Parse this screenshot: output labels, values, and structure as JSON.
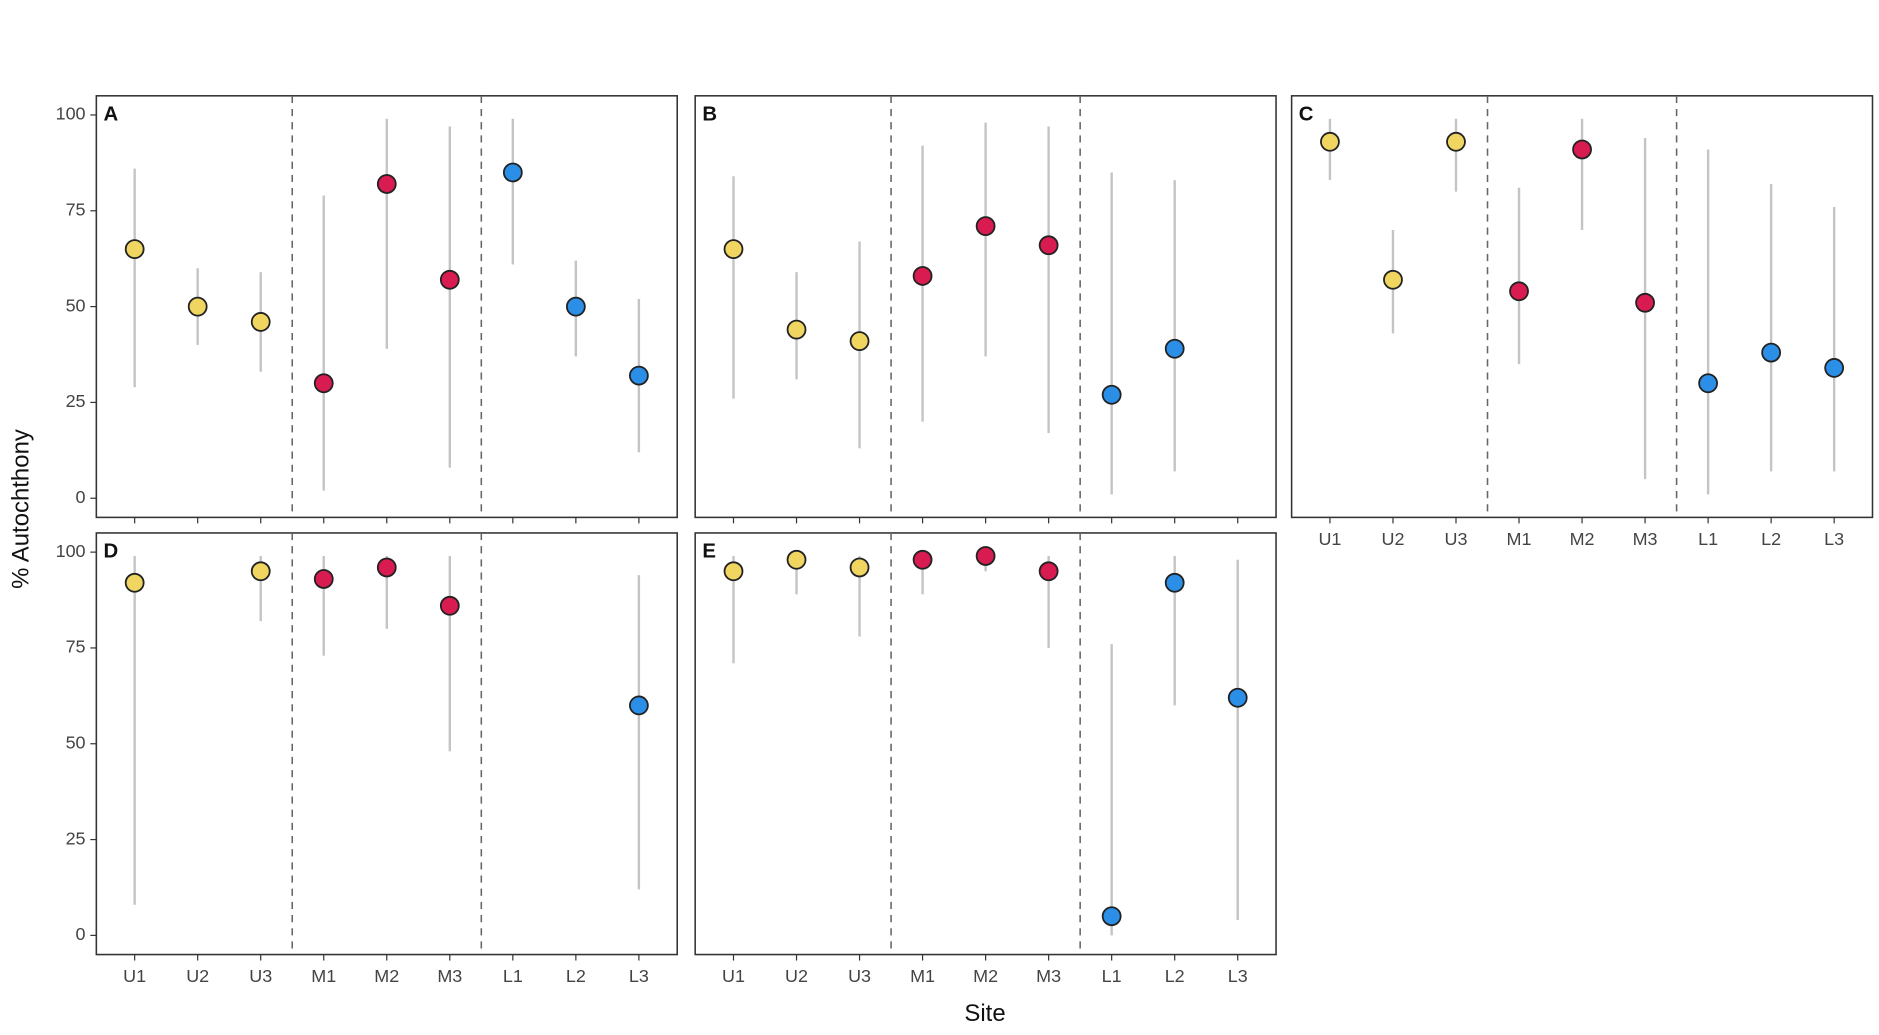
{
  "y_label": "% Autochthony",
  "x_label": "Site",
  "chart_data": [
    {
      "type": "pointrange",
      "title": "A",
      "values": [
        65,
        50,
        46,
        30,
        82,
        57,
        85,
        50,
        32
      ],
      "low": [
        29,
        40,
        33,
        2,
        39,
        8,
        61,
        37,
        12
      ],
      "high": [
        86,
        60,
        59,
        79,
        99,
        97,
        99,
        62,
        52
      ],
      "point_colors": [
        "#f0d660",
        "#f0d660",
        "#f0d660",
        "#d81b50",
        "#d81b50",
        "#d81b50",
        "#2b8fe8",
        "#2b8fe8",
        "#2b8fe8"
      ],
      "ylim": [
        -5,
        105
      ],
      "yticks": [
        0,
        25,
        50,
        75,
        100
      ]
    },
    {
      "type": "pointrange",
      "title": "B",
      "values": [
        65,
        44,
        41,
        58,
        71,
        66,
        27,
        39,
        null
      ],
      "low": [
        26,
        31,
        13,
        20,
        37,
        17,
        1,
        7,
        null
      ],
      "high": [
        84,
        59,
        67,
        92,
        98,
        97,
        85,
        83,
        null
      ],
      "point_colors": [
        "#f0d660",
        "#f0d660",
        "#f0d660",
        "#d81b50",
        "#d81b50",
        "#d81b50",
        "#2b8fe8",
        "#2b8fe8",
        "#2b8fe8"
      ],
      "ylim": [
        -5,
        105
      ]
    },
    {
      "type": "pointrange",
      "title": "C",
      "categories": [
        "U1",
        "U2",
        "U3",
        "M1",
        "M2",
        "M3",
        "L1",
        "L2",
        "L3"
      ],
      "values": [
        93,
        57,
        93,
        54,
        91,
        51,
        30,
        38,
        34
      ],
      "low": [
        83,
        43,
        80,
        35,
        70,
        5,
        1,
        7,
        7
      ],
      "high": [
        99,
        70,
        99,
        81,
        99,
        94,
        91,
        82,
        76
      ],
      "point_colors": [
        "#f0d660",
        "#f0d660",
        "#f0d660",
        "#d81b50",
        "#d81b50",
        "#d81b50",
        "#2b8fe8",
        "#2b8fe8",
        "#2b8fe8"
      ],
      "ylim": [
        -5,
        105
      ]
    },
    {
      "type": "pointrange",
      "title": "D",
      "categories": [
        "U1",
        "U2",
        "U3",
        "M1",
        "M2",
        "M3",
        "L1",
        "L2",
        "L3"
      ],
      "values": [
        92,
        null,
        95,
        93,
        96,
        86,
        null,
        null,
        60
      ],
      "low": [
        8,
        null,
        82,
        73,
        80,
        48,
        null,
        null,
        12
      ],
      "high": [
        99,
        null,
        99,
        99,
        99,
        99,
        null,
        null,
        94
      ],
      "point_colors": [
        "#f0d660",
        "#f0d660",
        "#f0d660",
        "#d81b50",
        "#d81b50",
        "#d81b50",
        "#2b8fe8",
        "#2b8fe8",
        "#2b8fe8"
      ],
      "ylim": [
        -5,
        105
      ],
      "yticks": [
        0,
        25,
        50,
        75,
        100
      ]
    },
    {
      "type": "pointrange",
      "title": "E",
      "categories": [
        "U1",
        "U2",
        "U3",
        "M1",
        "M2",
        "M3",
        "L1",
        "L2",
        "L3"
      ],
      "values": [
        95,
        98,
        96,
        98,
        99,
        95,
        5,
        92,
        62
      ],
      "low": [
        71,
        89,
        78,
        89,
        95,
        75,
        0,
        60,
        4
      ],
      "high": [
        99,
        99,
        99,
        99,
        100,
        99,
        76,
        99,
        98
      ],
      "point_colors": [
        "#f0d660",
        "#f0d660",
        "#f0d660",
        "#d81b50",
        "#d81b50",
        "#d81b50",
        "#2b8fe8",
        "#2b8fe8",
        "#2b8fe8"
      ],
      "ylim": [
        -5,
        105
      ]
    }
  ]
}
